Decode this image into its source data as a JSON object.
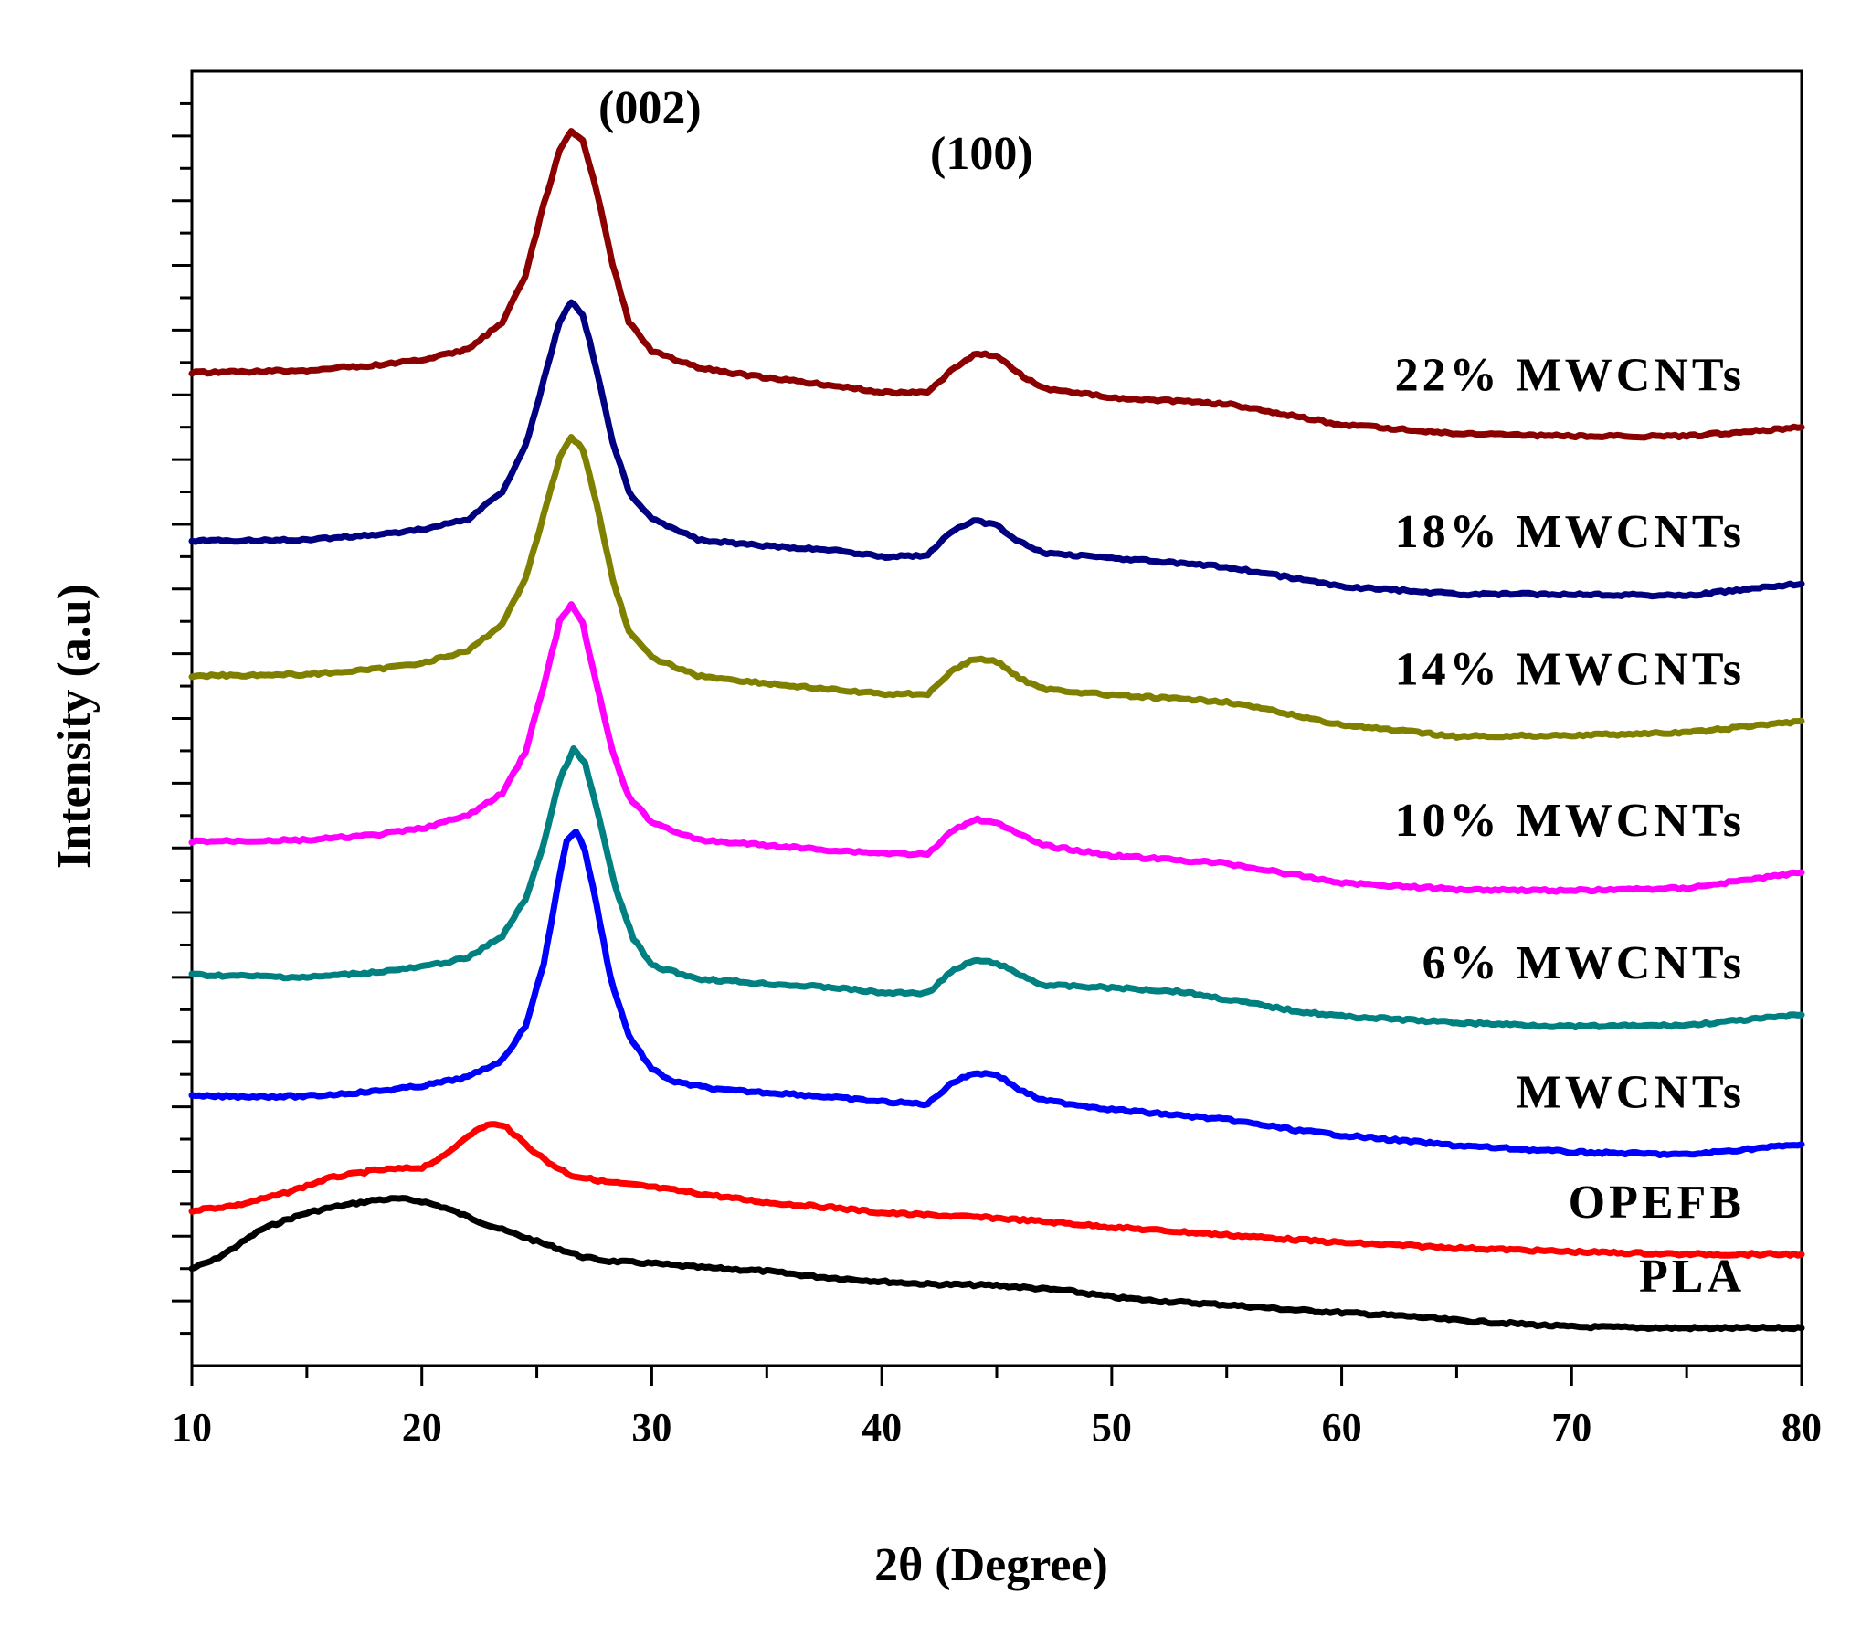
{
  "chart_data": {
    "type": "line",
    "xlabel": "2θ (Degree)",
    "ylabel": "Intensity (a.u)",
    "xlim": [
      10,
      80
    ],
    "ylim": [
      0,
      100
    ],
    "xticks": [
      "10",
      "20",
      "30",
      "40",
      "50",
      "60",
      "70",
      "80"
    ],
    "y_tick_labels_shown": false,
    "grid": false,
    "legend": "none",
    "annotations": [
      "(002)",
      "(100)"
    ],
    "series": [
      {
        "name": "PLA",
        "color": "#000000",
        "points": [
          [
            10,
            7.5
          ],
          [
            11,
            8.2
          ],
          [
            12,
            9.3
          ],
          [
            13,
            10.5
          ],
          [
            14,
            11.2
          ],
          [
            15,
            11.8
          ],
          [
            16,
            12.2
          ],
          [
            17,
            12.5
          ],
          [
            18,
            12.8
          ],
          [
            19,
            12.9
          ],
          [
            20,
            12.7
          ],
          [
            21,
            12.2
          ],
          [
            22,
            11.5
          ],
          [
            23,
            10.8
          ],
          [
            24,
            10.2
          ],
          [
            25,
            9.6
          ],
          [
            26,
            9.0
          ],
          [
            27,
            8.4
          ],
          [
            28,
            8.1
          ],
          [
            30,
            7.9
          ],
          [
            32,
            7.6
          ],
          [
            35,
            7.3
          ],
          [
            37,
            6.9
          ],
          [
            40,
            6.5
          ],
          [
            42,
            6.3
          ],
          [
            45,
            6.2
          ],
          [
            48,
            5.8
          ],
          [
            50,
            5.3
          ],
          [
            52,
            5.0
          ],
          [
            55,
            4.7
          ],
          [
            58,
            4.3
          ],
          [
            60,
            4.1
          ],
          [
            63,
            3.8
          ],
          [
            65,
            3.5
          ],
          [
            68,
            3.2
          ],
          [
            70,
            3.0
          ],
          [
            75,
            2.9
          ],
          [
            80,
            2.9
          ]
        ]
      },
      {
        "name": "OPEFB",
        "color": "#ff0000",
        "points": [
          [
            10,
            12.0
          ],
          [
            12,
            12.4
          ],
          [
            14,
            13.3
          ],
          [
            16,
            14.5
          ],
          [
            18,
            15.1
          ],
          [
            20,
            15.3
          ],
          [
            21,
            16.2
          ],
          [
            22,
            17.8
          ],
          [
            23,
            18.7
          ],
          [
            23.7,
            18.4
          ],
          [
            24.5,
            17.1
          ],
          [
            25.5,
            15.7
          ],
          [
            26.5,
            14.7
          ],
          [
            28,
            14.2
          ],
          [
            30,
            13.8
          ],
          [
            32,
            13.3
          ],
          [
            35,
            12.6
          ],
          [
            38,
            12.2
          ],
          [
            40,
            11.8
          ],
          [
            45,
            11.4
          ],
          [
            48,
            11.0
          ],
          [
            50,
            10.7
          ],
          [
            55,
            10.1
          ],
          [
            60,
            9.5
          ],
          [
            65,
            9.1
          ],
          [
            70,
            8.8
          ],
          [
            75,
            8.6
          ],
          [
            80,
            8.6
          ]
        ]
      },
      {
        "name": "MWCNTs",
        "color": "#0000ff",
        "points": [
          [
            10,
            20.8
          ],
          [
            15,
            20.8
          ],
          [
            18,
            21.2
          ],
          [
            20,
            21.6
          ],
          [
            22,
            22.3
          ],
          [
            23.5,
            23.6
          ],
          [
            24.5,
            26.2
          ],
          [
            25.3,
            31.0
          ],
          [
            25.9,
            37.0
          ],
          [
            26.3,
            40.6
          ],
          [
            26.7,
            41.3
          ],
          [
            27.1,
            39.8
          ],
          [
            27.6,
            35.6
          ],
          [
            28.2,
            30.0
          ],
          [
            29,
            25.5
          ],
          [
            30,
            22.9
          ],
          [
            31,
            21.9
          ],
          [
            33,
            21.3
          ],
          [
            36,
            21.0
          ],
          [
            38,
            20.7
          ],
          [
            40,
            20.4
          ],
          [
            42,
            20.2
          ],
          [
            43,
            21.8
          ],
          [
            44,
            22.6
          ],
          [
            45,
            22.5
          ],
          [
            46,
            21.3
          ],
          [
            47,
            20.5
          ],
          [
            50,
            19.8
          ],
          [
            55,
            19.0
          ],
          [
            58,
            18.2
          ],
          [
            60,
            17.8
          ],
          [
            65,
            17.0
          ],
          [
            70,
            16.5
          ],
          [
            75,
            16.3
          ],
          [
            80,
            17.1
          ]
        ]
      },
      {
        "name": "6% MWCNTs",
        "color": "#008080",
        "points": [
          [
            10,
            30.2
          ],
          [
            15,
            30.0
          ],
          [
            18,
            30.4
          ],
          [
            20,
            30.8
          ],
          [
            22,
            31.5
          ],
          [
            23.5,
            33.2
          ],
          [
            24.5,
            36.0
          ],
          [
            25.3,
            40.3
          ],
          [
            26,
            45.3
          ],
          [
            26.6,
            47.6
          ],
          [
            27.1,
            46.5
          ],
          [
            27.7,
            42.4
          ],
          [
            28.4,
            37.0
          ],
          [
            29.2,
            33.0
          ],
          [
            30,
            30.9
          ],
          [
            32,
            29.9
          ],
          [
            35,
            29.5
          ],
          [
            38,
            29.2
          ],
          [
            40,
            28.8
          ],
          [
            42,
            28.8
          ],
          [
            43,
            30.4
          ],
          [
            44,
            31.3
          ],
          [
            45,
            31.1
          ],
          [
            46,
            30.2
          ],
          [
            47,
            29.4
          ],
          [
            50,
            29.2
          ],
          [
            53,
            28.9
          ],
          [
            55,
            28.3
          ],
          [
            58,
            27.4
          ],
          [
            60,
            27.0
          ],
          [
            65,
            26.5
          ],
          [
            70,
            26.2
          ],
          [
            75,
            26.3
          ],
          [
            80,
            27.1
          ]
        ]
      },
      {
        "name": "10% MWCNTs",
        "color": "#ff00ff",
        "points": [
          [
            10,
            40.5
          ],
          [
            15,
            40.6
          ],
          [
            18,
            41.0
          ],
          [
            20,
            41.5
          ],
          [
            22,
            42.5
          ],
          [
            23.5,
            44.2
          ],
          [
            24.5,
            47.4
          ],
          [
            25.3,
            52.5
          ],
          [
            26,
            57.5
          ],
          [
            26.5,
            58.8
          ],
          [
            27,
            57.3
          ],
          [
            27.6,
            52.6
          ],
          [
            28.3,
            47.4
          ],
          [
            29,
            43.9
          ],
          [
            30,
            42.0
          ],
          [
            32,
            40.6
          ],
          [
            35,
            40.2
          ],
          [
            38,
            39.8
          ],
          [
            40,
            39.6
          ],
          [
            42,
            39.5
          ],
          [
            43,
            41.2
          ],
          [
            44,
            42.2
          ],
          [
            45,
            42.0
          ],
          [
            46,
            41.0
          ],
          [
            47,
            40.2
          ],
          [
            50,
            39.4
          ],
          [
            55,
            38.8
          ],
          [
            60,
            37.3
          ],
          [
            65,
            36.8
          ],
          [
            70,
            36.7
          ],
          [
            75,
            36.9
          ],
          [
            80,
            38.1
          ]
        ]
      },
      {
        "name": "14% MWCNTs",
        "color": "#808000",
        "points": [
          [
            10,
            53.3
          ],
          [
            15,
            53.4
          ],
          [
            18,
            53.8
          ],
          [
            20,
            54.3
          ],
          [
            22,
            55.2
          ],
          [
            23.5,
            57.3
          ],
          [
            24.5,
            60.8
          ],
          [
            25.3,
            65.7
          ],
          [
            26,
            70.2
          ],
          [
            26.5,
            71.8
          ],
          [
            27,
            70.8
          ],
          [
            27.6,
            66.6
          ],
          [
            28.3,
            60.8
          ],
          [
            29,
            56.7
          ],
          [
            30,
            54.7
          ],
          [
            32,
            53.3
          ],
          [
            35,
            52.7
          ],
          [
            38,
            52.2
          ],
          [
            40,
            51.9
          ],
          [
            42,
            51.9
          ],
          [
            43,
            53.6
          ],
          [
            44,
            54.6
          ],
          [
            45,
            54.4
          ],
          [
            46,
            53.1
          ],
          [
            47,
            52.3
          ],
          [
            50,
            51.8
          ],
          [
            55,
            51.3
          ],
          [
            60,
            49.5
          ],
          [
            65,
            48.6
          ],
          [
            70,
            48.7
          ],
          [
            75,
            48.9
          ],
          [
            80,
            49.8
          ]
        ]
      },
      {
        "name": "18% MWCNTs",
        "color": "#000080",
        "points": [
          [
            10,
            63.7
          ],
          [
            15,
            63.8
          ],
          [
            18,
            64.2
          ],
          [
            20,
            64.6
          ],
          [
            22,
            65.4
          ],
          [
            23.5,
            67.5
          ],
          [
            24.5,
            71.0
          ],
          [
            25.3,
            76.1
          ],
          [
            26,
            80.7
          ],
          [
            26.5,
            82.2
          ],
          [
            27,
            81.2
          ],
          [
            27.6,
            77.0
          ],
          [
            28.3,
            71.4
          ],
          [
            29,
            67.5
          ],
          [
            30,
            65.5
          ],
          [
            32,
            63.8
          ],
          [
            35,
            63.3
          ],
          [
            38,
            63.0
          ],
          [
            40,
            62.5
          ],
          [
            42,
            62.6
          ],
          [
            43,
            64.4
          ],
          [
            44,
            65.3
          ],
          [
            45,
            64.9
          ],
          [
            46,
            63.6
          ],
          [
            47,
            62.8
          ],
          [
            50,
            62.4
          ],
          [
            55,
            61.7
          ],
          [
            60,
            60.2
          ],
          [
            65,
            59.6
          ],
          [
            70,
            59.6
          ],
          [
            75,
            59.5
          ],
          [
            80,
            60.4
          ]
        ]
      },
      {
        "name": "22% MWCNTs",
        "color": "#8b0000",
        "points": [
          [
            10,
            76.7
          ],
          [
            15,
            76.9
          ],
          [
            18,
            77.3
          ],
          [
            20,
            77.7
          ],
          [
            22,
            78.5
          ],
          [
            23.5,
            80.6
          ],
          [
            24.5,
            84.2
          ],
          [
            25.3,
            89.7
          ],
          [
            26,
            93.9
          ],
          [
            26.5,
            95.4
          ],
          [
            27,
            94.6
          ],
          [
            27.6,
            90.8
          ],
          [
            28.3,
            85.1
          ],
          [
            29,
            80.6
          ],
          [
            30,
            78.4
          ],
          [
            32,
            77.1
          ],
          [
            35,
            76.3
          ],
          [
            38,
            75.7
          ],
          [
            40,
            75.2
          ],
          [
            42,
            75.2
          ],
          [
            43,
            76.8
          ],
          [
            44,
            78.1
          ],
          [
            45,
            78.1
          ],
          [
            46,
            76.6
          ],
          [
            47,
            75.5
          ],
          [
            50,
            74.8
          ],
          [
            55,
            74.3
          ],
          [
            60,
            72.7
          ],
          [
            65,
            72.0
          ],
          [
            70,
            71.8
          ],
          [
            75,
            71.8
          ],
          [
            80,
            72.5
          ]
        ]
      }
    ]
  }
}
